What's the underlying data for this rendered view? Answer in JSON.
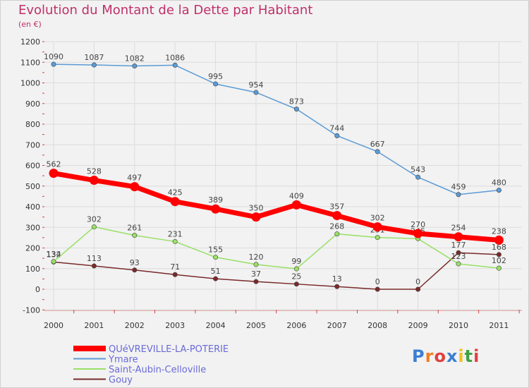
{
  "header": {
    "title": "Evolution du Montant de la Dette par Habitant",
    "subtitle": "(en €)"
  },
  "logo": {
    "text": "Proxiti"
  },
  "colors": {
    "background": "#f2f2f2",
    "grid": "#dcdcdc",
    "title": "#c0306a",
    "legend_text": "#6a6ad8",
    "axis_text": "#333333"
  },
  "chart_data": {
    "type": "line",
    "title": "Evolution du Montant de la Dette par Habitant",
    "subtitle": "(en €)",
    "xlabel": "",
    "ylabel": "",
    "categories": [
      "2000",
      "2001",
      "2002",
      "2003",
      "2004",
      "2005",
      "2006",
      "2007",
      "2008",
      "2009",
      "2010",
      "2011"
    ],
    "ylim": [
      -100,
      1200
    ],
    "yticks": [
      -100,
      0,
      100,
      200,
      300,
      400,
      500,
      600,
      700,
      800,
      900,
      1000,
      1100,
      1200
    ],
    "grid": true,
    "legend": "bottom-left",
    "series": [
      {
        "name": "QUéVREVILLE-LA-POTERIE",
        "color": "#ff0000",
        "values": [
          562,
          528,
          497,
          425,
          389,
          350,
          409,
          357,
          302,
          270,
          254,
          238
        ]
      },
      {
        "name": "Ymare",
        "color": "#5b9bd5",
        "values": [
          1090,
          1087,
          1082,
          1086,
          995,
          954,
          873,
          744,
          667,
          543,
          459,
          480
        ]
      },
      {
        "name": "Saint-Aubin-Celloville",
        "color": "#99e066",
        "values": [
          134,
          302,
          261,
          231,
          155,
          120,
          99,
          268,
          251,
          245,
          123,
          102
        ]
      },
      {
        "name": "Gouy",
        "color": "#7a2a2a",
        "values": [
          132,
          113,
          93,
          71,
          51,
          37,
          25,
          13,
          0,
          0,
          177,
          168
        ]
      }
    ]
  }
}
